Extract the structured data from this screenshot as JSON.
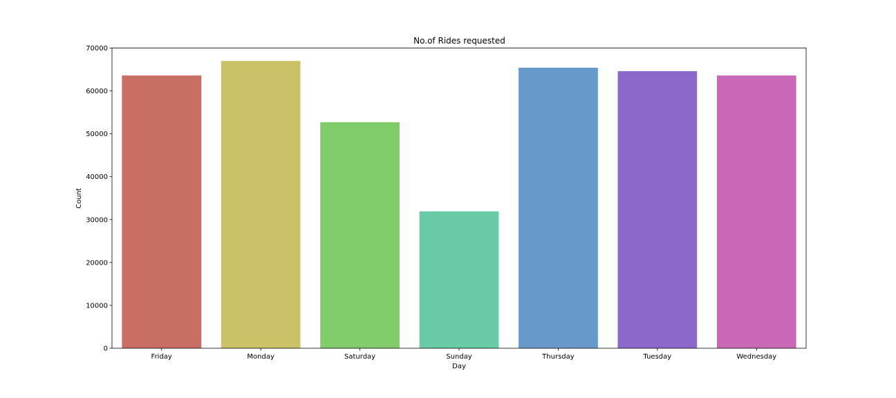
{
  "chart_data": {
    "type": "bar",
    "title": "No.of Rides requested",
    "xlabel": "Day",
    "ylabel": "Count",
    "categories": [
      "Friday",
      "Monday",
      "Saturday",
      "Sunday",
      "Thursday",
      "Tuesday",
      "Wednesday"
    ],
    "values": [
      63600,
      67000,
      52700,
      31900,
      65400,
      64600,
      63600
    ],
    "colors": [
      "#c96e64",
      "#cbc168",
      "#80cc6a",
      "#68cba6",
      "#6799ca",
      "#8b68ca",
      "#c968b6"
    ],
    "ylim": [
      0,
      70000
    ],
    "yticks": [
      0,
      10000,
      20000,
      30000,
      40000,
      50000,
      60000,
      70000
    ],
    "grid": false,
    "legend": "none"
  }
}
